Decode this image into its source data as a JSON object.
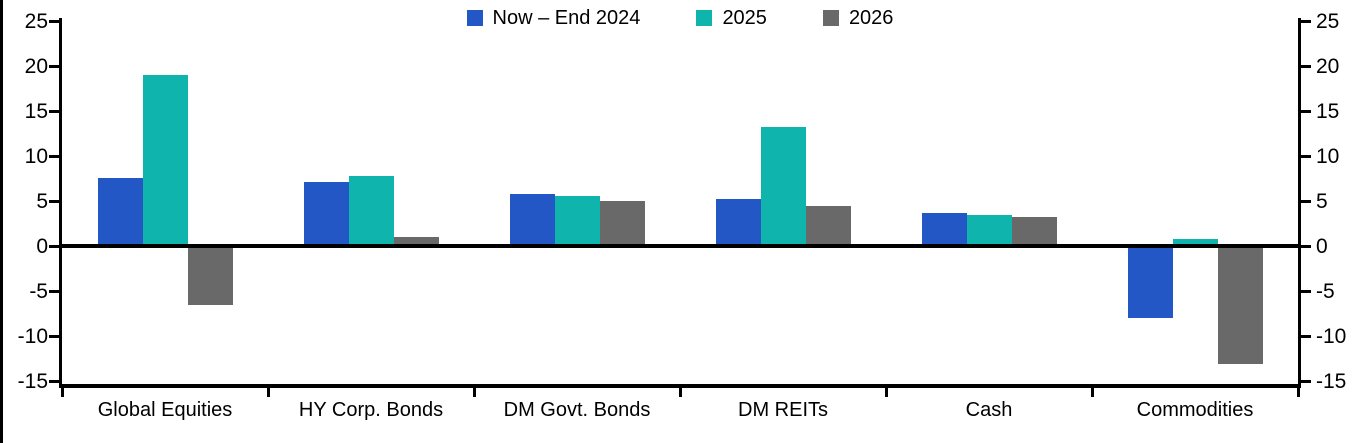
{
  "chart_data": {
    "type": "bar",
    "title": "",
    "xlabel": "",
    "ylabel": "",
    "categories": [
      "Global Equities",
      "HY Corp. Bonds",
      "DM Govt. Bonds",
      "DM REITs",
      "Cash",
      "Commodities"
    ],
    "series": [
      {
        "name": "Now – End 2024",
        "color": "#2257C5",
        "values": [
          7.6,
          7.1,
          5.8,
          5.2,
          3.7,
          -8.0
        ]
      },
      {
        "name": "2025",
        "color": "#0FB5AC",
        "values": [
          19.0,
          7.8,
          5.6,
          13.2,
          3.5,
          0.8
        ]
      },
      {
        "name": "2026",
        "color": "#696969",
        "values": [
          -6.6,
          1.0,
          5.0,
          4.5,
          3.2,
          -13.1
        ]
      }
    ],
    "ylim": [
      -15,
      25
    ],
    "ytick_step": 5,
    "yticks": [
      25,
      20,
      15,
      10,
      5,
      0,
      -5,
      -10,
      -15
    ],
    "ytick_labels": [
      "25",
      "20",
      "15",
      "10",
      "5",
      "0",
      "-5",
      "-10",
      "-15"
    ],
    "y_axis_sides": "both",
    "grid": false,
    "zero_baseline": true,
    "legend_position": "top-center",
    "axis_color": "#000000",
    "background_color": "#FFFFFF"
  }
}
